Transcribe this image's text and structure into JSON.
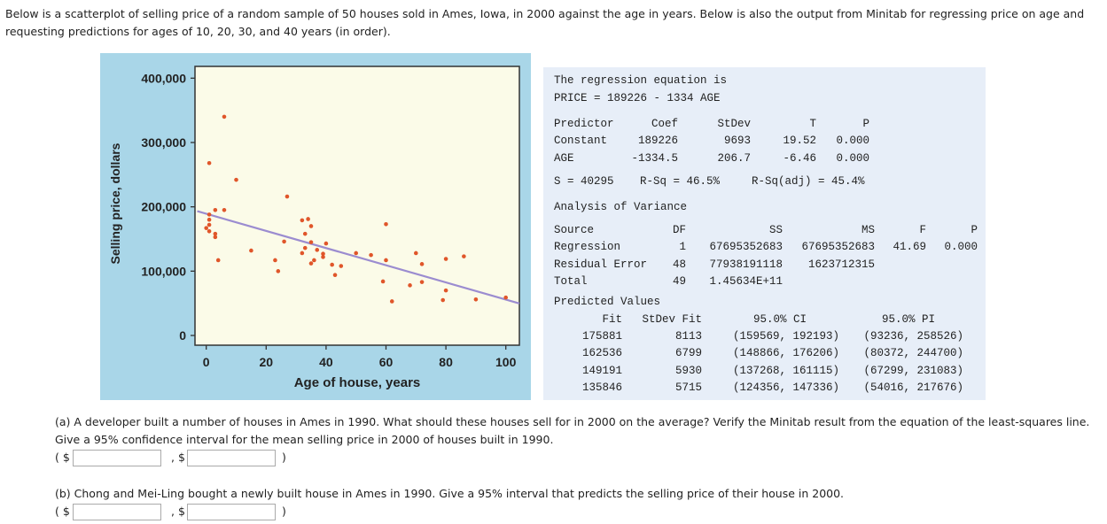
{
  "intro": "Below is a scatterplot of selling price of a random sample of 50 houses sold in Ames, Iowa, in 2000 against the age in years. Below is also the output from Minitab for regressing price on age and requesting predictions for ages of 10, 20, 30, and 40 years (in order).",
  "chart_data": {
    "type": "scatter",
    "xlabel": "Age of house, years",
    "ylabel": "Selling price, dollars",
    "xlim": [
      -3,
      105
    ],
    "ylim": [
      -15000,
      415000
    ],
    "xticks": [
      "0",
      "20",
      "40",
      "60",
      "80",
      "100"
    ],
    "yticks": [
      "0",
      "100,000",
      "200,000",
      "300,000",
      "400,000"
    ],
    "grid": false,
    "colors": {
      "points": "#e0562a",
      "line": "#9b8cd0",
      "plot_bg": "#fbfbe8",
      "frame_bg": "#a9d6e8"
    },
    "points": [
      [
        6,
        340000
      ],
      [
        1,
        268000
      ],
      [
        10,
        242000
      ],
      [
        27,
        216000
      ],
      [
        3,
        195000
      ],
      [
        6,
        195000
      ],
      [
        1,
        188000
      ],
      [
        1,
        180000
      ],
      [
        1,
        172000
      ],
      [
        0,
        167000
      ],
      [
        1,
        162000
      ],
      [
        3,
        158000
      ],
      [
        3,
        153000
      ],
      [
        4,
        117000
      ],
      [
        15,
        132000
      ],
      [
        23,
        117000
      ],
      [
        24,
        100000
      ],
      [
        26,
        146000
      ],
      [
        32,
        179000
      ],
      [
        34,
        181000
      ],
      [
        35,
        170000
      ],
      [
        33,
        158000
      ],
      [
        35,
        145000
      ],
      [
        33,
        136000
      ],
      [
        32,
        128000
      ],
      [
        37,
        133000
      ],
      [
        40,
        143000
      ],
      [
        39,
        127000
      ],
      [
        39,
        122000
      ],
      [
        36,
        117000
      ],
      [
        35,
        112000
      ],
      [
        42,
        110000
      ],
      [
        43,
        94000
      ],
      [
        45,
        108000
      ],
      [
        50,
        128000
      ],
      [
        55,
        125000
      ],
      [
        60,
        173000
      ],
      [
        60,
        117000
      ],
      [
        59,
        84000
      ],
      [
        62,
        53000
      ],
      [
        68,
        78000
      ],
      [
        70,
        128000
      ],
      [
        72,
        111000
      ],
      [
        72,
        83000
      ],
      [
        80,
        119000
      ],
      [
        80,
        70000
      ],
      [
        79,
        55000
      ],
      [
        86,
        123000
      ],
      [
        90,
        56000
      ],
      [
        100,
        59000
      ]
    ],
    "fit_line": {
      "intercept": 189226,
      "slope": -1334.5
    }
  },
  "minitab": {
    "eq_title": "The regression equation is",
    "equation": "PRICE = 189226 - 1334 AGE",
    "coef_header": [
      "Predictor",
      "Coef",
      "StDev",
      "T",
      "P"
    ],
    "coef_rows": [
      [
        "Constant",
        "189226",
        "9693",
        "19.52",
        "0.000"
      ],
      [
        "AGE",
        "-1334.5",
        "206.7",
        "-6.46",
        "0.000"
      ]
    ],
    "s": "S = 40295",
    "rsq": "R-Sq = 46.5%",
    "rsq_adj": "R-Sq(adj) = 45.4%",
    "anova_title": "Analysis of Variance",
    "anova_header": [
      "Source",
      "DF",
      "SS",
      "MS",
      "F",
      "P"
    ],
    "anova_rows": [
      [
        "Regression",
        "1",
        "67695352683",
        "67695352683",
        "41.69",
        "0.000"
      ],
      [
        "Residual Error",
        "48",
        "77938191118",
        "1623712315",
        "",
        ""
      ],
      [
        "Total",
        "49",
        "1.45634E+11",
        "",
        "",
        ""
      ]
    ],
    "pred_title": "Predicted Values",
    "pred_header": [
      "Fit",
      "StDev Fit",
      "95.0% CI",
      "95.0% PI"
    ],
    "pred_rows": [
      [
        "175881",
        "8113",
        "(159569, 192193)",
        "(93236, 258526)"
      ],
      [
        "162536",
        "6799",
        "(148866, 176206)",
        "(80372, 244700)"
      ],
      [
        "149191",
        "5930",
        "(137268, 161115)",
        "(67299, 231083)"
      ],
      [
        "135846",
        "5715",
        "(124356, 147336)",
        "(54016, 217676)"
      ]
    ]
  },
  "questions": {
    "a": "(a) A developer built a number of houses in Ames in 1990. What should these houses sell for in 2000 on the average? Verify the Minitab result from the equation of the least-squares line. Give a 95% confidence interval for the mean selling price in 2000 of houses built in 1990.",
    "b": "(b) Chong and Mei-Ling bought a newly built house in Ames in 1990. Give a 95% interval that predicts the selling price of their house in 2000.",
    "open": "( $",
    "sep": ", $",
    "close": ")",
    "a_low": "",
    "a_high": "",
    "b_low": "",
    "b_high": ""
  }
}
